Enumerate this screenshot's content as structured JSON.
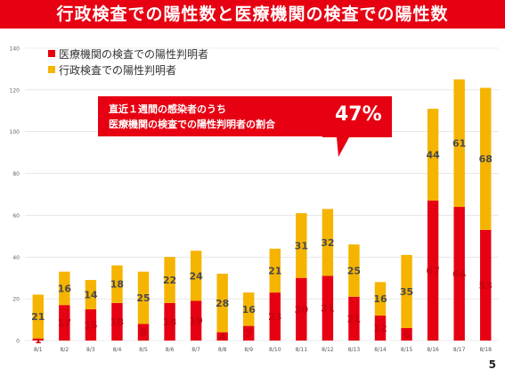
{
  "header": {
    "title": "行政検査での陽性数と医療機関の検査での陽性数"
  },
  "legend": {
    "items": [
      {
        "label": "医療機関の検査での陽性判明者",
        "color": "#e60012"
      },
      {
        "label": "行政検査での陽性判明者",
        "color": "#f5b400"
      }
    ]
  },
  "callout": {
    "line1": "直近１週間の感染者のうち",
    "line2": "医療機関の検査での陽性判明者の割合",
    "value": "47%"
  },
  "page_number": "5",
  "chart_data": {
    "type": "bar",
    "stacked": true,
    "categories": [
      "8/1",
      "8/2",
      "8/3",
      "8/4",
      "8/5",
      "8/6",
      "8/7",
      "8/8",
      "8/9",
      "8/10",
      "8/11",
      "8/12",
      "8/13",
      "8/14",
      "8/15",
      "8/16",
      "8/17",
      "8/18"
    ],
    "series": [
      {
        "name": "医療機関の検査での陽性判明者",
        "color": "#e60012",
        "values": [
          1,
          17,
          15,
          18,
          8,
          18,
          19,
          4,
          7,
          23,
          30,
          31,
          21,
          12,
          6,
          67,
          64,
          53
        ]
      },
      {
        "name": "行政検査での陽性判明者",
        "color": "#f5b400",
        "values": [
          21,
          16,
          14,
          18,
          25,
          22,
          24,
          28,
          16,
          21,
          31,
          32,
          25,
          16,
          35,
          44,
          61,
          68
        ]
      }
    ],
    "ylim": [
      0,
      140
    ],
    "yticks": [
      0,
      20,
      40,
      60,
      80,
      100,
      120,
      140
    ],
    "grid": true
  }
}
